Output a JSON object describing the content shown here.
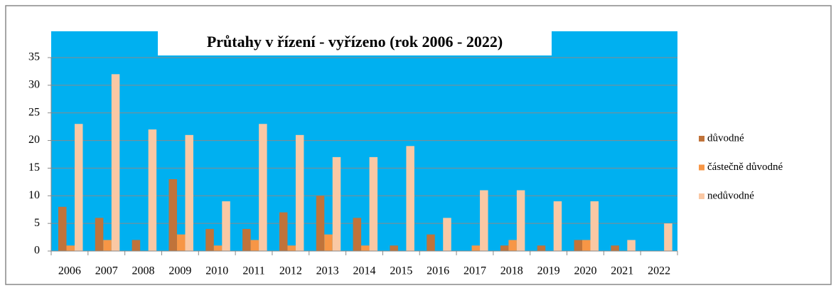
{
  "chart_data": {
    "type": "bar",
    "title": "Průtahy v řízení - vyřízeno (rok 2006 - 2022)",
    "categories": [
      "2006",
      "2007",
      "2008",
      "2009",
      "2010",
      "2011",
      "2012",
      "2013",
      "2014",
      "2015",
      "2016",
      "2017",
      "2018",
      "2019",
      "2020",
      "2021",
      "2022"
    ],
    "series": [
      {
        "name": "důvodné",
        "color": "#c0733a",
        "values": [
          8,
          6,
          2,
          13,
          4,
          4,
          7,
          10,
          6,
          1,
          3,
          0,
          1,
          1,
          2,
          1,
          0
        ]
      },
      {
        "name": "částečně důvodné",
        "color": "#f79646",
        "values": [
          1,
          2,
          0,
          3,
          1,
          2,
          1,
          3,
          1,
          0,
          0,
          1,
          2,
          0,
          2,
          0,
          0
        ]
      },
      {
        "name": "nedůvodné",
        "color": "#fac8a4",
        "values": [
          23,
          32,
          22,
          21,
          9,
          23,
          21,
          17,
          17,
          19,
          6,
          11,
          11,
          9,
          9,
          2,
          5
        ]
      }
    ],
    "ylim": [
      0,
      35
    ],
    "yticks": [
      0,
      5,
      10,
      15,
      20,
      25,
      30,
      35
    ],
    "grid": true,
    "plot_background": "#00b0f0",
    "legend": "right"
  }
}
